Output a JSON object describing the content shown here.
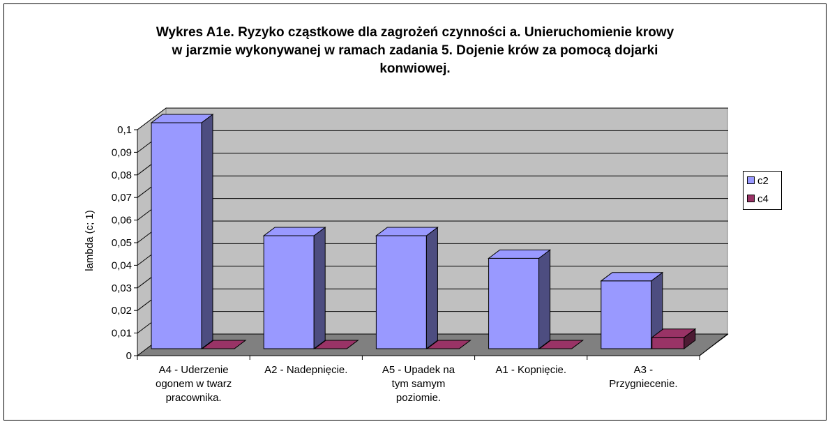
{
  "chart_data": {
    "type": "bar3d",
    "title": "Wykres A1e. Ryzyko cząstkowe dla zagrożeń czynności a. Unieruchomienie krowy\nw jarzmie wykonywanej w ramach zadania 5. Dojenie krów za pomocą dojarki\nkonwiowej.",
    "y_label": "lambda (c; 1)",
    "categories": [
      "A4 - Uderzenie\nogonem w twarz\npracownika.",
      "A2 - Nadepnięcie.",
      "A5 - Upadek na\ntym samym\npoziomie.",
      "A1 - Kopnięcie.",
      "A3 -\nPrzygniecenie."
    ],
    "series": [
      {
        "name": "c2",
        "color": "#9999ff",
        "values": [
          0.1,
          0.05,
          0.05,
          0.04,
          0.03
        ]
      },
      {
        "name": "c4",
        "color": "#993366",
        "values": [
          0,
          0,
          0,
          0,
          0.005
        ]
      }
    ],
    "ylim": [
      0,
      0.1
    ],
    "yticks": [
      0,
      {
        "value": 0.01,
        "label": "0,01"
      },
      {
        "value": 0.02,
        "label": "0,02"
      },
      {
        "value": 0.03,
        "label": "0,03"
      },
      {
        "value": 0.04,
        "label": "0,04"
      },
      {
        "value": 0.05,
        "label": "0,05"
      },
      {
        "value": 0.06,
        "label": "0,06"
      },
      {
        "value": 0.07,
        "label": "0,07"
      },
      {
        "value": 0.08,
        "label": "0,08"
      },
      {
        "value": 0.09,
        "label": "0,09"
      },
      {
        "value": 0.1,
        "label": "0,1"
      }
    ],
    "grid": true,
    "legend": "right"
  }
}
